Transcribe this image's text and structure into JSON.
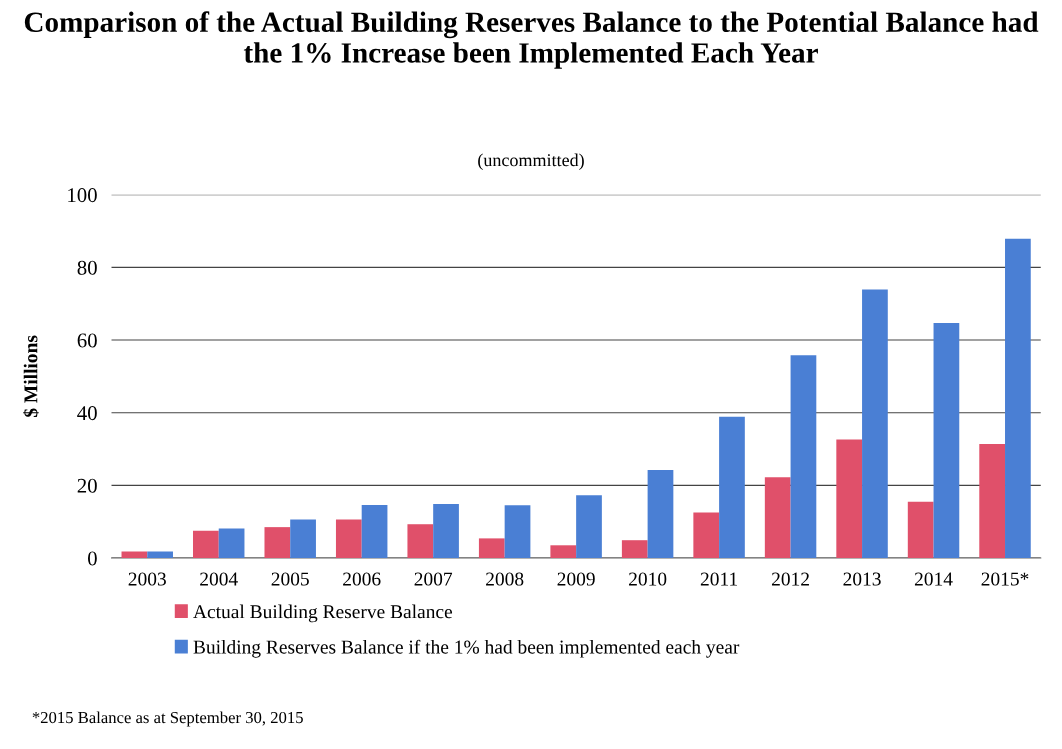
{
  "chart_data": {
    "type": "bar",
    "title": "Comparison of the Actual Building Reserves Balance to the Potential Balance had the 1% Increase been Implemented Each Year",
    "subtitle": "(uncommitted)",
    "ylabel": "$ Millions",
    "categories": [
      "2003",
      "2004",
      "2005",
      "2006",
      "2007",
      "2008",
      "2009",
      "2010",
      "2011",
      "2012",
      "2013",
      "2014",
      "2015*"
    ],
    "series": [
      {
        "name": "Actual Building Reserve Balance",
        "color": "#e0506a",
        "values": [
          1.8,
          7.5,
          8.5,
          10.6,
          9.3,
          5.4,
          3.5,
          4.9,
          12.5,
          22.2,
          32.6,
          15.5,
          31.4
        ]
      },
      {
        "name": "Building Reserves Balance if the 1% had been implemented each year",
        "color": "#4a7fd4",
        "values": [
          1.8,
          8.1,
          10.6,
          14.6,
          14.9,
          14.5,
          17.3,
          24.2,
          38.9,
          55.8,
          73.9,
          64.7,
          87.9
        ]
      }
    ],
    "ylim": [
      0,
      100
    ],
    "yticks": [
      0,
      20,
      40,
      60,
      80,
      100
    ],
    "grid": "y",
    "legend": "bottom",
    "annotations": [
      "*2015 Balance as at September 30, 2015"
    ]
  }
}
